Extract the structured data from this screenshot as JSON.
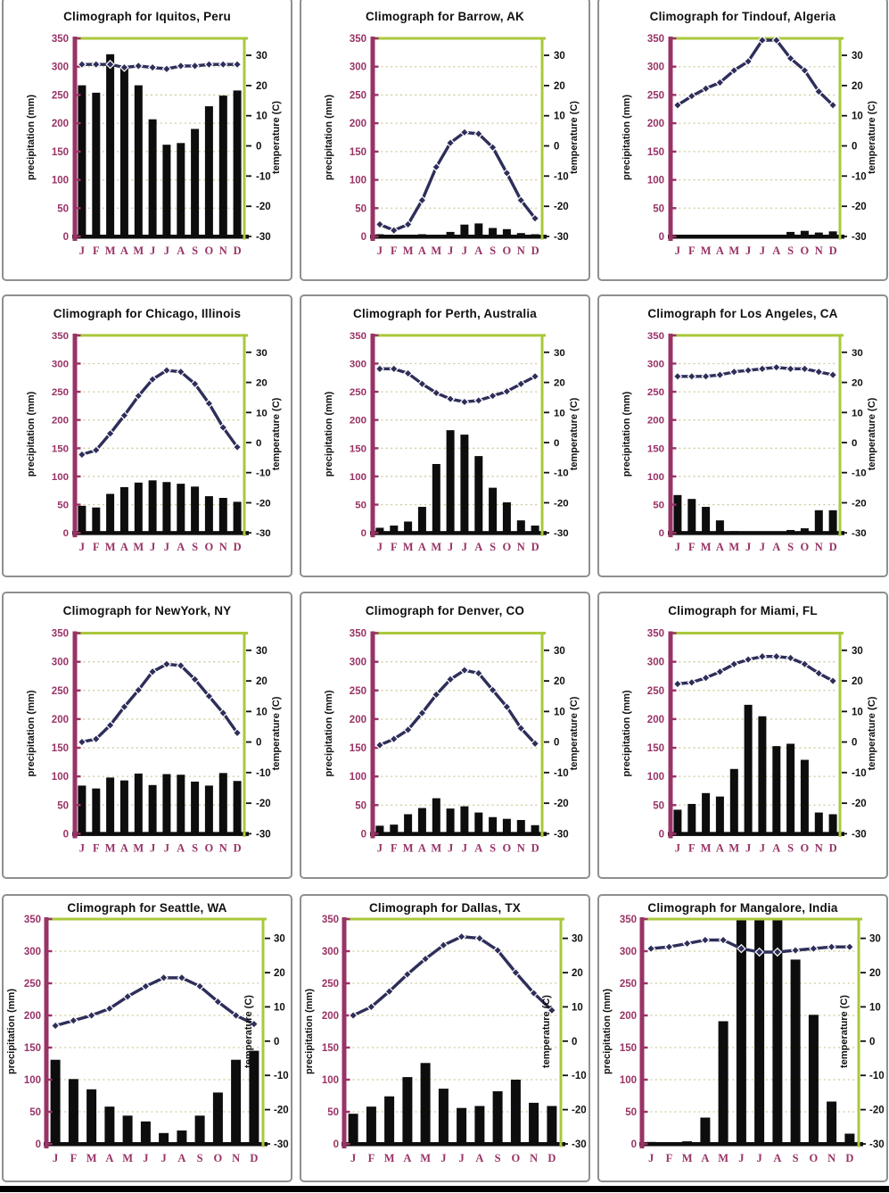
{
  "colors": {
    "precip_axis": "#993366",
    "precip_tick_labels": "#993366",
    "month_labels": "#993366",
    "temp_line": "#2e2e5a",
    "marker_outline": "#ffffff",
    "secondary_axis_green": "#a9c83b",
    "gridline": "#cccc99",
    "bars": "#0d0d0d",
    "axis_title_text": "#111111",
    "temp_tick_labels": "#111111",
    "panel_border": "#8f8f8f",
    "baseline": "#0d0d0d",
    "footer_bar": "#000000"
  },
  "chart_data": {
    "type": "bar+line",
    "description": "Grid of 12 climographs: black monthly precipitation bars (left axis) and dark-navy diamond temperature line (right axis)",
    "months": [
      "J",
      "F",
      "M",
      "A",
      "M",
      "J",
      "J",
      "A",
      "S",
      "O",
      "N",
      "D"
    ],
    "precip_axis": {
      "label": "precipitation (mm)",
      "min": 0,
      "max": 350,
      "tick_step": 50,
      "ticks": [
        350,
        300,
        250,
        200,
        150,
        100,
        50,
        0
      ]
    },
    "temp_axis": {
      "label": "temperature (C)",
      "ticks": [
        30,
        20,
        10,
        0,
        -10,
        -20,
        -30
      ],
      "min": -30,
      "alignment": "-30 C sits on the 0 mm baseline; 10 C spans about 53 mm",
      "grid": "dashed horizontal gridlines every 50 mm"
    },
    "charts": [
      {
        "title": "Climograph for Iquitos, Peru",
        "city": "Iquitos, Peru",
        "precipitation_mm": [
          267,
          254,
          322,
          297,
          267,
          207,
          162,
          165,
          190,
          230,
          249,
          258
        ],
        "temperature_c": [
          27,
          27,
          27,
          26,
          26.5,
          26,
          25.5,
          26.5,
          26.5,
          27,
          27,
          27
        ]
      },
      {
        "title": "Climograph for Barrow, AK",
        "city": "Barrow, AK",
        "precipitation_mm": [
          4,
          2,
          3,
          4,
          3,
          8,
          21,
          23,
          15,
          13,
          6,
          4
        ],
        "temperature_c": [
          -26,
          -28,
          -26,
          -18,
          -7,
          1,
          4.5,
          4,
          -0.5,
          -9,
          -18,
          -24
        ]
      },
      {
        "title": "Climograph for Tindouf, Algeria",
        "city": "Tindouf, Algeria",
        "precipitation_mm": [
          3,
          2,
          3,
          1,
          1,
          0,
          0,
          1,
          8,
          10,
          7,
          9
        ],
        "temperature_c": [
          13.5,
          16.5,
          19,
          21,
          25,
          28,
          35,
          35,
          29,
          25,
          18,
          13.5
        ]
      },
      {
        "title": "Climograph for Chicago, Illinois",
        "city": "Chicago, Illinois",
        "precipitation_mm": [
          48,
          45,
          69,
          81,
          89,
          93,
          90,
          87,
          82,
          65,
          62,
          55
        ],
        "temperature_c": [
          -4,
          -2.5,
          3,
          9,
          15.5,
          21,
          24,
          23.5,
          19.5,
          13,
          5,
          -1.5
        ]
      },
      {
        "title": "Climograph for Perth, Australia",
        "city": "Perth, Australia",
        "precipitation_mm": [
          9,
          13,
          20,
          46,
          122,
          182,
          174,
          136,
          80,
          54,
          22,
          13
        ],
        "temperature_c": [
          24.5,
          24.5,
          23,
          19.5,
          16.5,
          14.5,
          13.5,
          14,
          15.5,
          17,
          19.5,
          22
        ]
      },
      {
        "title": "Climograph for Los Angeles, CA",
        "city": "Los Angeles, CA",
        "precipitation_mm": [
          67,
          60,
          46,
          22,
          3,
          1,
          0,
          2,
          5,
          8,
          40,
          40
        ],
        "temperature_c": [
          22,
          22,
          22,
          22.5,
          23.5,
          24,
          24.5,
          25,
          24.5,
          24.5,
          23.5,
          22.5
        ]
      },
      {
        "title": "Climograph for NewYork, NY",
        "city": "NewYork, NY",
        "precipitation_mm": [
          84,
          79,
          98,
          93,
          105,
          85,
          104,
          103,
          91,
          84,
          106,
          92
        ],
        "temperature_c": [
          0,
          1,
          5.5,
          11.5,
          17,
          23,
          25.5,
          25,
          20.5,
          15,
          9.5,
          3
        ]
      },
      {
        "title": "Climograph for Denver, CO",
        "city": "Denver, CO",
        "precipitation_mm": [
          14,
          16,
          34,
          45,
          62,
          44,
          48,
          37,
          29,
          26,
          24,
          15
        ],
        "temperature_c": [
          -1,
          1,
          4,
          9.5,
          15.5,
          20.5,
          23.5,
          22.5,
          17,
          11.5,
          4.5,
          -0.5
        ]
      },
      {
        "title": "Climograph for Miami, FL",
        "city": "Miami, FL",
        "precipitation_mm": [
          42,
          52,
          71,
          65,
          113,
          225,
          205,
          153,
          157,
          129,
          37,
          34
        ],
        "temperature_c": [
          19,
          19.5,
          21,
          23,
          25.5,
          27,
          28,
          28,
          27.5,
          25.5,
          22.5,
          20
        ]
      },
      {
        "title": "Climograph for Seattle, WA",
        "city": "Seattle, WA",
        "precipitation_mm": [
          131,
          101,
          85,
          58,
          44,
          35,
          17,
          21,
          44,
          80,
          131,
          145
        ],
        "temperature_c": [
          4.5,
          6,
          7.5,
          9.5,
          13,
          16,
          18.5,
          18.5,
          16,
          11.5,
          7.5,
          5
        ]
      },
      {
        "title": "Climograph for Dallas, TX",
        "city": "Dallas, TX",
        "precipitation_mm": [
          47,
          58,
          74,
          104,
          126,
          86,
          56,
          59,
          82,
          100,
          64,
          59
        ],
        "temperature_c": [
          7.5,
          10,
          14.5,
          19.5,
          24,
          28,
          30.5,
          30,
          26.5,
          20,
          14,
          9
        ]
      },
      {
        "title": "Climograph for Mangalore, India",
        "city": "Mangalore, India",
        "precipitation_mm": [
          3,
          1,
          4,
          41,
          191,
          350,
          350,
          350,
          287,
          201,
          66,
          16
        ],
        "temperature_c": [
          27,
          27.5,
          28.5,
          29.5,
          29.5,
          27,
          26,
          26,
          26.5,
          27,
          27.5,
          27.5
        ],
        "note": "June, July and August bars are clipped at the 350 mm axis maximum"
      }
    ]
  }
}
